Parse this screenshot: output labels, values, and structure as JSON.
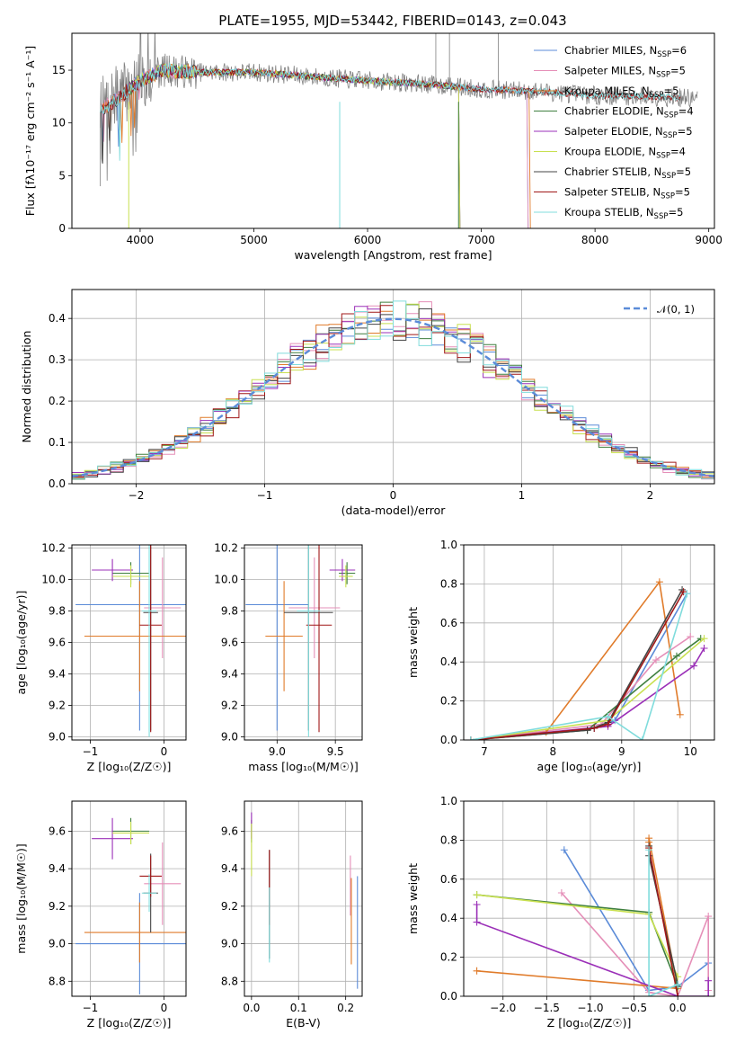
{
  "figure_title": "PLATE=1955, MJD=53442, FIBERID=0143, z=0.043",
  "colors": {
    "Chabrier MILES": "#5b8bd8",
    "Salpeter MILES": "#e58fb8",
    "Kroupa MILES": "#e07b2a",
    "Chabrier ELODIE": "#3f7f3f",
    "Salpeter ELODIE": "#9b30b8",
    "Kroupa ELODIE": "#c8e050",
    "Chabrier STELIB": "#444444",
    "Salpeter STELIB": "#a01818",
    "Kroupa STELIB": "#80dcdc",
    "data": "#808080",
    "normal": "#5b8bd8"
  },
  "chart_data": [
    {
      "id": "spectrum",
      "type": "line",
      "title": "PLATE=1955, MJD=53442, FIBERID=0143, z=0.043",
      "xlabel": "wavelength [Angstrom, rest frame]",
      "ylabel": "Flux [fλ10⁻¹⁷ erg cm⁻² s⁻¹ A⁻¹]",
      "xlim": [
        3400,
        9050
      ],
      "ylim": [
        0,
        18.5
      ],
      "xticks": [
        "4000",
        "5000",
        "6000",
        "7000",
        "8000",
        "9000"
      ],
      "yticks": [
        "0",
        "5",
        "10",
        "15"
      ],
      "legend_position": "top-right",
      "legend": [
        {
          "name": "Chabrier MILES",
          "sub": "SSP",
          "n": "6"
        },
        {
          "name": "Salpeter MILES",
          "sub": "SSP",
          "n": "5"
        },
        {
          "name": "Kroupa MILES",
          "sub": "SSP",
          "n": "5"
        },
        {
          "name": "Chabrier ELODIE",
          "sub": "SSP",
          "n": "4"
        },
        {
          "name": "Salpeter ELODIE",
          "sub": "SSP",
          "n": "5"
        },
        {
          "name": "Kroupa ELODIE",
          "sub": "SSP",
          "n": "4"
        },
        {
          "name": "Chabrier STELIB",
          "sub": "SSP",
          "n": "5"
        },
        {
          "name": "Salpeter STELIB",
          "sub": "SSP",
          "n": "5"
        },
        {
          "name": "Kroupa STELIB",
          "sub": "SSP",
          "n": "5"
        }
      ],
      "data_range": [
        3650,
        8900
      ],
      "continuum": [
        [
          3650,
          11.2
        ],
        [
          3800,
          12.3
        ],
        [
          4000,
          14.0
        ],
        [
          4200,
          15.0
        ],
        [
          4500,
          14.8
        ],
        [
          5000,
          14.8
        ],
        [
          5500,
          14.4
        ],
        [
          6000,
          14.0
        ],
        [
          6500,
          13.7
        ],
        [
          7000,
          13.2
        ],
        [
          7500,
          13.0
        ],
        [
          8000,
          12.6
        ],
        [
          8500,
          12.5
        ],
        [
          8900,
          12.3
        ]
      ],
      "model_ranges": {
        "Chabrier MILES": [
          3650,
          7400
        ],
        "Salpeter MILES": [
          3650,
          7400
        ],
        "Kroupa MILES": [
          3650,
          7420
        ],
        "Chabrier ELODIE": [
          3900,
          6800
        ],
        "Salpeter ELODIE": [
          3900,
          6800
        ],
        "Kroupa ELODIE": [
          3900,
          6800
        ],
        "Chabrier STELIB": [
          3650,
          8750
        ],
        "Salpeter STELIB": [
          3650,
          8750
        ],
        "Kroupa STELIB": [
          3650,
          8750
        ]
      }
    },
    {
      "id": "residual-histogram",
      "type": "histogram",
      "xlabel": "(data-model)/error",
      "ylabel": "Normed distribution",
      "xlim": [
        -2.5,
        2.5
      ],
      "ylim": [
        0,
        0.47
      ],
      "xticks": [
        "−2",
        "−1",
        "0",
        "1",
        "2"
      ],
      "yticks": [
        "0.0",
        "0.1",
        "0.2",
        "0.3",
        "0.4"
      ],
      "bin_width": 0.1,
      "grid": true,
      "legend_position": "top-right",
      "legend_label": "𝒩(0, 1)",
      "normal_curve": {
        "mean": 0,
        "sigma": 1
      }
    },
    {
      "id": "age-vs-Z",
      "type": "errorbar",
      "xlabel": "Z [log₁₀(Z/Z☉)]",
      "ylabel": "age  [log₁₀(age/yr)]",
      "xlim": [
        -1.25,
        0.3
      ],
      "ylim": [
        8.98,
        10.22
      ],
      "xticks": [
        "−1",
        "0"
      ],
      "yticks": [
        "9.0",
        "9.2",
        "9.4",
        "9.6",
        "9.8",
        "10.0",
        "10.2"
      ],
      "grid": true,
      "points": [
        {
          "model": "Chabrier MILES",
          "x": -0.33,
          "xerr": 0.87,
          "y": 9.84,
          "yerr": 0.8
        },
        {
          "model": "Salpeter MILES",
          "x": -0.02,
          "xerr": 0.25,
          "y": 9.82,
          "yerr": 0.32
        },
        {
          "model": "Kroupa MILES",
          "x": -0.33,
          "xerr": 0.75,
          "y": 9.64,
          "yerr": 0.35
        },
        {
          "model": "Chabrier ELODIE",
          "x": -0.45,
          "xerr": 0.25,
          "y": 10.04,
          "yerr": 0.07
        },
        {
          "model": "Salpeter ELODIE",
          "x": -0.7,
          "xerr": 0.28,
          "y": 10.06,
          "yerr": 0.07
        },
        {
          "model": "Kroupa ELODIE",
          "x": -0.45,
          "xerr": 0.25,
          "y": 10.02,
          "yerr": 0.07
        },
        {
          "model": "Chabrier STELIB",
          "x": -0.18,
          "xerr": 0.1,
          "y": 9.79,
          "yerr": 0.75
        },
        {
          "model": "Salpeter STELIB",
          "x": -0.18,
          "xerr": 0.15,
          "y": 9.71,
          "yerr": 0.68
        },
        {
          "model": "Kroupa STELIB",
          "x": -0.2,
          "xerr": 0.1,
          "y": 9.8,
          "yerr": 0.8
        }
      ]
    },
    {
      "id": "age-vs-mass",
      "type": "errorbar",
      "xlabel": "mass [log₁₀(M/M☉)]",
      "ylabel": "",
      "xlim": [
        8.72,
        9.73
      ],
      "ylim": [
        8.98,
        10.22
      ],
      "xticks": [
        "9.0",
        "9.5"
      ],
      "yticks": [
        "9.0",
        "9.2",
        "9.4",
        "9.6",
        "9.8",
        "10.0",
        "10.2"
      ],
      "grid": true,
      "points": [
        {
          "model": "Chabrier MILES",
          "x": 9.0,
          "xerr": 0.27,
          "y": 9.84,
          "yerr": 0.8
        },
        {
          "model": "Salpeter MILES",
          "x": 9.32,
          "xerr": 0.22,
          "y": 9.82,
          "yerr": 0.32
        },
        {
          "model": "Kroupa MILES",
          "x": 9.06,
          "xerr": 0.16,
          "y": 9.64,
          "yerr": 0.35
        },
        {
          "model": "Chabrier ELODIE",
          "x": 9.6,
          "xerr": 0.07,
          "y": 10.04,
          "yerr": 0.07
        },
        {
          "model": "Salpeter ELODIE",
          "x": 9.56,
          "xerr": 0.11,
          "y": 10.06,
          "yerr": 0.07
        },
        {
          "model": "Kroupa ELODIE",
          "x": 9.59,
          "xerr": 0.06,
          "y": 10.02,
          "yerr": 0.07
        },
        {
          "model": "Chabrier STELIB",
          "x": 9.27,
          "xerr": 0.21,
          "y": 9.79,
          "yerr": 0.75
        },
        {
          "model": "Salpeter STELIB",
          "x": 9.36,
          "xerr": 0.11,
          "y": 9.71,
          "yerr": 0.68
        },
        {
          "model": "Kroupa STELIB",
          "x": 9.27,
          "xerr": 0.1,
          "y": 9.8,
          "yerr": 0.8
        }
      ]
    },
    {
      "id": "mass-weight-vs-age",
      "type": "line",
      "xlabel": "age  [log₁₀(age/yr)]",
      "ylabel": "mass weight",
      "xlim": [
        6.7,
        10.35
      ],
      "ylim": [
        0,
        1.0
      ],
      "xticks": [
        "7",
        "8",
        "9",
        "10"
      ],
      "yticks": [
        "0.0",
        "0.2",
        "0.4",
        "0.6",
        "0.8",
        "1.0"
      ],
      "grid": true,
      "series": [
        {
          "model": "Chabrier MILES",
          "x": [
            6.8,
            8.6,
            8.9,
            9.95
          ],
          "y": [
            0.0,
            0.06,
            0.1,
            0.75
          ]
        },
        {
          "model": "Salpeter MILES",
          "x": [
            6.8,
            8.7,
            9.5,
            10.0
          ],
          "y": [
            0.0,
            0.08,
            0.41,
            0.53
          ]
        },
        {
          "model": "Kroupa MILES",
          "x": [
            6.8,
            7.9,
            9.55,
            9.85
          ],
          "y": [
            0.0,
            0.04,
            0.81,
            0.13
          ]
        },
        {
          "model": "Chabrier ELODIE",
          "x": [
            6.8,
            8.5,
            9.8,
            10.15
          ],
          "y": [
            0.0,
            0.05,
            0.43,
            0.52
          ]
        },
        {
          "model": "Salpeter ELODIE",
          "x": [
            6.8,
            8.8,
            10.05,
            10.2
          ],
          "y": [
            0.0,
            0.07,
            0.38,
            0.47
          ]
        },
        {
          "model": "Kroupa ELODIE",
          "x": [
            6.8,
            8.8,
            10.2
          ],
          "y": [
            0.0,
            0.1,
            0.52
          ]
        },
        {
          "model": "Chabrier STELIB",
          "x": [
            6.8,
            8.5,
            8.8,
            9.88
          ],
          "y": [
            0.0,
            0.05,
            0.09,
            0.77
          ]
        },
        {
          "model": "Salpeter STELIB",
          "x": [
            6.8,
            8.6,
            8.8,
            9.9
          ],
          "y": [
            0.0,
            0.06,
            0.08,
            0.76
          ]
        },
        {
          "model": "Kroupa STELIB",
          "x": [
            6.8,
            8.8,
            9.3,
            9.95
          ],
          "y": [
            0.0,
            0.12,
            0.0,
            0.75
          ]
        }
      ]
    },
    {
      "id": "mass-vs-Z",
      "type": "errorbar",
      "xlabel": "Z [log₁₀(Z/Z☉)]",
      "ylabel": "mass [log₁₀(M/M☉)]",
      "xlim": [
        -1.25,
        0.3
      ],
      "ylim": [
        8.72,
        9.76
      ],
      "xticks": [
        "−1",
        "0"
      ],
      "yticks": [
        "8.8",
        "9.0",
        "9.2",
        "9.4",
        "9.6"
      ],
      "grid": true,
      "points": [
        {
          "model": "Chabrier MILES",
          "x": -0.33,
          "xerr": 0.87,
          "y": 9.0,
          "yerr": 0.27
        },
        {
          "model": "Salpeter MILES",
          "x": -0.02,
          "xerr": 0.25,
          "y": 9.32,
          "yerr": 0.22
        },
        {
          "model": "Kroupa MILES",
          "x": -0.33,
          "xerr": 0.75,
          "y": 9.06,
          "yerr": 0.16
        },
        {
          "model": "Chabrier ELODIE",
          "x": -0.45,
          "xerr": 0.25,
          "y": 9.6,
          "yerr": 0.07
        },
        {
          "model": "Salpeter ELODIE",
          "x": -0.7,
          "xerr": 0.28,
          "y": 9.56,
          "yerr": 0.11
        },
        {
          "model": "Kroupa ELODIE",
          "x": -0.45,
          "xerr": 0.25,
          "y": 9.59,
          "yerr": 0.06
        },
        {
          "model": "Chabrier STELIB",
          "x": -0.18,
          "xerr": 0.1,
          "y": 9.27,
          "yerr": 0.21
        },
        {
          "model": "Salpeter STELIB",
          "x": -0.18,
          "xerr": 0.15,
          "y": 9.36,
          "yerr": 0.11
        },
        {
          "model": "Kroupa STELIB",
          "x": -0.2,
          "xerr": 0.1,
          "y": 9.27,
          "yerr": 0.1
        }
      ]
    },
    {
      "id": "mass-vs-EBV",
      "type": "errorbar",
      "xlabel": "E(B-V)",
      "ylabel": "",
      "xlim": [
        -0.015,
        0.235
      ],
      "ylim": [
        8.72,
        9.76
      ],
      "xticks": [
        "0.0",
        "0.1",
        "0.2"
      ],
      "yticks": [
        "8.8",
        "9.0",
        "9.2",
        "9.4",
        "9.6"
      ],
      "grid": true,
      "points": [
        {
          "model": "Chabrier MILES",
          "x": 0.225,
          "y": 9.06,
          "yerr": 0.3
        },
        {
          "model": "Salpeter MILES",
          "x": 0.21,
          "y": 9.31,
          "yerr": 0.16
        },
        {
          "model": "Kroupa MILES",
          "x": 0.212,
          "y": 9.12,
          "yerr": 0.23
        },
        {
          "model": "Chabrier ELODIE",
          "x": 0.0,
          "y": 9.6,
          "yerr": 0.06
        },
        {
          "model": "Salpeter ELODIE",
          "x": 0.0,
          "y": 9.63,
          "yerr": 0.07
        },
        {
          "model": "Kroupa ELODIE",
          "x": 0.0,
          "y": 9.5,
          "yerr": 0.14
        },
        {
          "model": "Chabrier STELIB",
          "x": 0.038,
          "y": 9.21,
          "yerr": 0.29
        },
        {
          "model": "Salpeter STELIB",
          "x": 0.038,
          "y": 9.3,
          "yerr": 0.2
        },
        {
          "model": "Kroupa STELIB",
          "x": 0.038,
          "y": 9.1,
          "yerr": 0.2
        }
      ]
    },
    {
      "id": "mass-weight-vs-Z",
      "type": "line",
      "xlabel": "Z [log₁₀(Z/Z☉)]",
      "ylabel": "mass weight",
      "xlim": [
        -2.45,
        0.42
      ],
      "ylim": [
        0,
        1.0
      ],
      "xticks": [
        "−2.0",
        "−1.5",
        "−1.0",
        "−0.5",
        "0.0"
      ],
      "yticks": [
        "0.0",
        "0.2",
        "0.4",
        "0.6",
        "0.8",
        "1.0"
      ],
      "grid": true,
      "series": [
        {
          "model": "Chabrier MILES",
          "x": [
            -1.3,
            -0.33,
            0.0,
            0.35
          ],
          "y": [
            0.75,
            0.03,
            0.05,
            0.17
          ]
        },
        {
          "model": "Salpeter MILES",
          "x": [
            -1.33,
            -0.33,
            0.0,
            0.35,
            0.35
          ],
          "y": [
            0.53,
            0.02,
            0.0,
            0.41,
            0.03
          ]
        },
        {
          "model": "Kroupa MILES",
          "x": [
            -2.3,
            0.0,
            -0.33,
            -0.33
          ],
          "y": [
            0.13,
            0.04,
            0.81,
            0.79
          ]
        },
        {
          "model": "Chabrier ELODIE",
          "x": [
            -2.3,
            -0.33,
            0.0
          ],
          "y": [
            0.52,
            0.43,
            0.05
          ]
        },
        {
          "model": "Salpeter ELODIE",
          "x": [
            -2.3,
            -2.3,
            0.0,
            0.35,
            0.35
          ],
          "y": [
            0.47,
            0.38,
            0.0,
            0.0,
            0.08
          ]
        },
        {
          "model": "Kroupa ELODIE",
          "x": [
            -2.3,
            -0.33,
            0.0
          ],
          "y": [
            0.52,
            0.42,
            0.1
          ]
        },
        {
          "model": "Chabrier STELIB",
          "x": [
            -0.33,
            -0.33,
            0.0
          ],
          "y": [
            0.77,
            0.72,
            0.06
          ]
        },
        {
          "model": "Salpeter STELIB",
          "x": [
            -0.33,
            0.0
          ],
          "y": [
            0.76,
            0.0
          ]
        },
        {
          "model": "Kroupa STELIB",
          "x": [
            -0.33,
            -0.33,
            0.0
          ],
          "y": [
            0.75,
            0.0,
            0.06
          ]
        }
      ]
    }
  ]
}
